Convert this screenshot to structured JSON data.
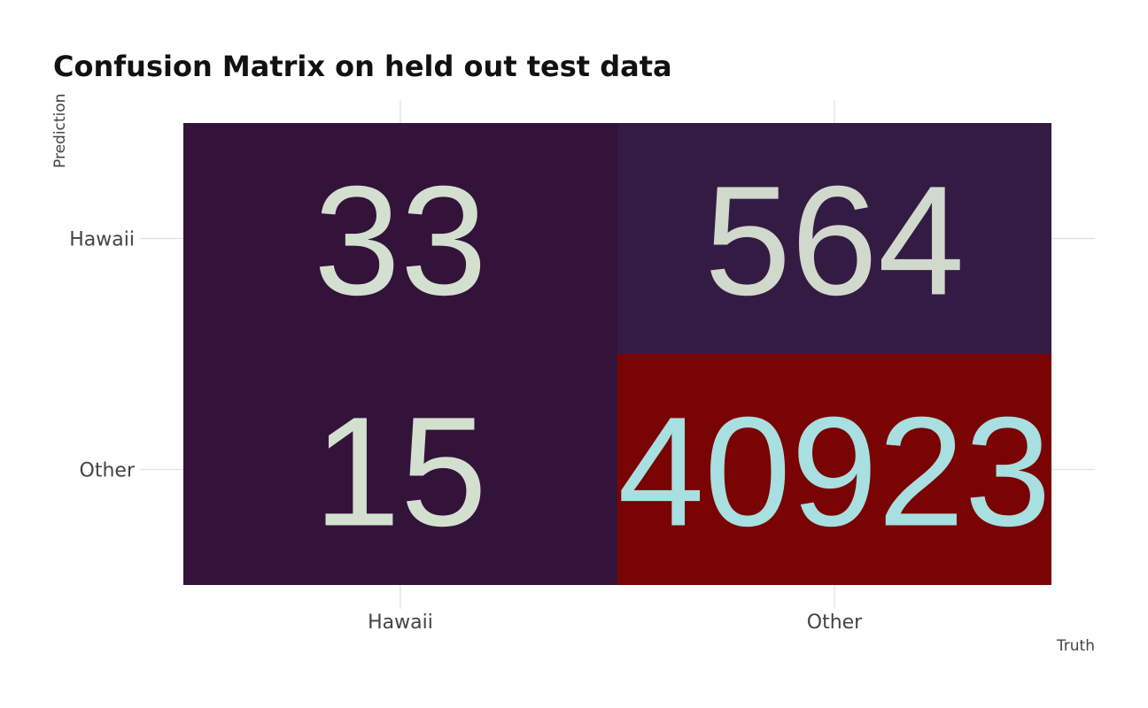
{
  "chart_data": {
    "type": "heatmap",
    "title": "Confusion Matrix on held out test data",
    "xlabel": "Truth",
    "ylabel": "Prediction",
    "x_categories": [
      "Hawaii",
      "Other"
    ],
    "y_categories": [
      "Hawaii",
      "Other"
    ],
    "cells": [
      {
        "truth": "Hawaii",
        "prediction": "Hawaii",
        "value": 33,
        "fill": "#33133A",
        "text_color": "#D3E0CF"
      },
      {
        "truth": "Other",
        "prediction": "Hawaii",
        "value": 564,
        "fill": "#341B44",
        "text_color": "#D0D9CB"
      },
      {
        "truth": "Hawaii",
        "prediction": "Other",
        "value": 15,
        "fill": "#33133A",
        "text_color": "#D3E0CF"
      },
      {
        "truth": "Other",
        "prediction": "Other",
        "value": 40923,
        "fill": "#790403",
        "text_color": "#A8DFE0"
      }
    ],
    "grid": true,
    "legend": "none"
  },
  "colors": {
    "background": "#ffffff",
    "grid": "#e0e0e0",
    "title": "#111111",
    "axis_text": "#444444"
  }
}
